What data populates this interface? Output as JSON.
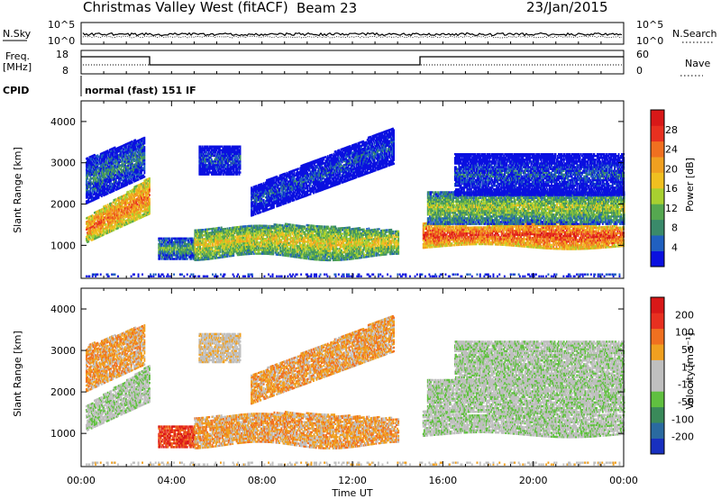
{
  "header": {
    "title": "Christmas Valley West (fitACF)",
    "beam": "Beam 23",
    "date": "23/Jan/2015"
  },
  "panels": {
    "noise": {
      "left_label": "N.Sky",
      "right_label": "N.Search",
      "left_ticks": [
        "10^5",
        "10^0"
      ],
      "right_ticks": [
        "10^5",
        "10^0"
      ]
    },
    "freq": {
      "left_label_line1": "Freq.",
      "left_label_line2": "[MHz]",
      "right_label": "Nave",
      "left_ticks": [
        "18",
        "8"
      ],
      "right_ticks": [
        "60",
        "0"
      ]
    },
    "cpid": {
      "label": "CPID",
      "value": "normal (fast) 151 IF"
    }
  },
  "chart_data": [
    {
      "type": "heatmap",
      "name": "power",
      "ylabel": "Slant Range [km]",
      "yticks": [
        1000,
        2000,
        3000,
        4000
      ],
      "ylim": [
        200,
        4500
      ],
      "xlim": [
        "00:00",
        "24:00"
      ],
      "colorbar": {
        "label": "Power [dB]",
        "ticks": [
          "4",
          "8",
          "12",
          "16",
          "20",
          "24",
          "28"
        ],
        "colors": [
          "#0a10e0",
          "#2060c0",
          "#3a8a6a",
          "#55a850",
          "#a8d030",
          "#f0c020",
          "#f0a020",
          "#f07020",
          "#e83020",
          "#d81818"
        ]
      }
    },
    {
      "type": "heatmap",
      "name": "velocity",
      "ylabel": "Slant Range [km]",
      "yticks": [
        1000,
        2000,
        3000,
        4000
      ],
      "ylim": [
        200,
        4500
      ],
      "xlim": [
        "00:00",
        "24:00"
      ],
      "xlabel": "Time UT",
      "xticks": [
        "00:00",
        "04:00",
        "08:00",
        "12:00",
        "16:00",
        "20:00",
        "00:00"
      ],
      "colorbar": {
        "label": "Velocity [m s⁻¹]",
        "ticks": [
          "200",
          "100",
          "50",
          "15",
          "-15",
          "-50",
          "-100",
          "-200"
        ],
        "colors": [
          "#1830c0",
          "#2a6aa0",
          "#3a8a5a",
          "#60c040",
          "#bfbfbf",
          "#bfbfbf",
          "#f0a020",
          "#f07020",
          "#e83020",
          "#d81818"
        ]
      }
    }
  ]
}
